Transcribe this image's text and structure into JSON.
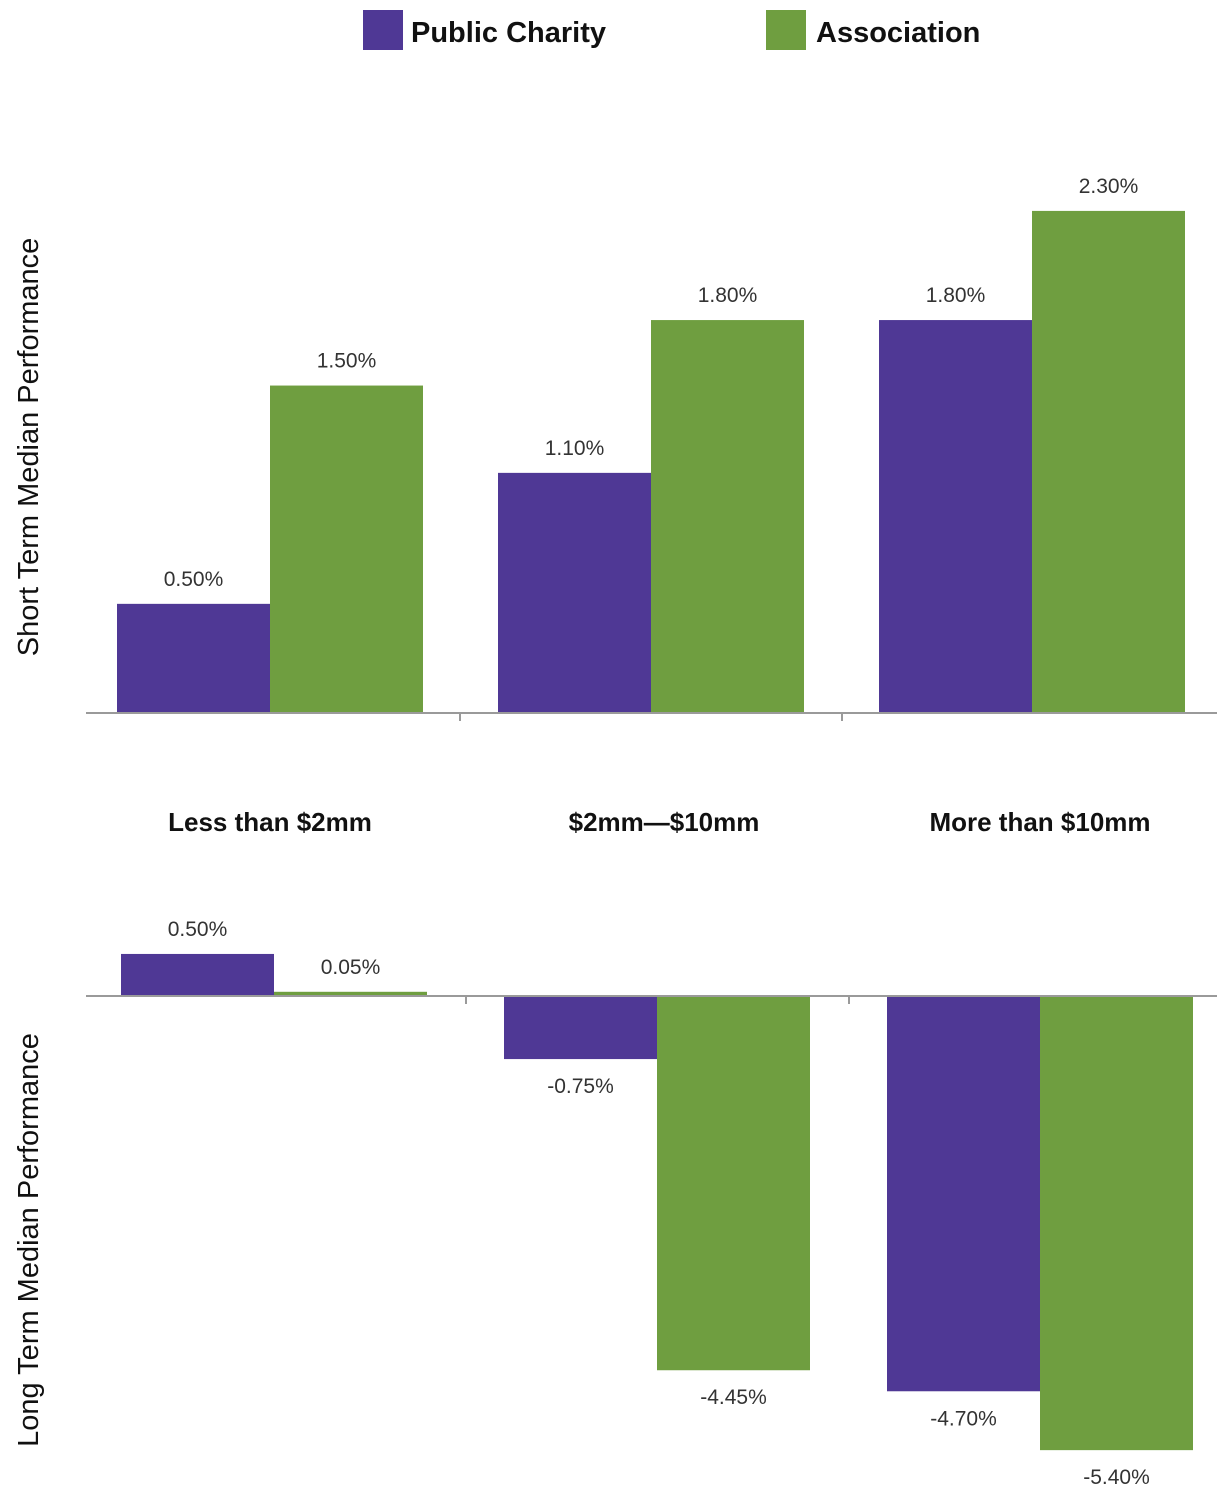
{
  "colors": {
    "public_charity": "#4f3895",
    "association": "#6f9e40"
  },
  "legend": [
    {
      "label": "Public Charity",
      "color": "#4f3895"
    },
    {
      "label": "Association",
      "color": "#6f9e40"
    }
  ],
  "chart_data": [
    {
      "type": "bar",
      "ylabel": "Short Term Median Performance",
      "categories": [
        "Less than $2mm",
        "$2mm—$10mm",
        "More than $10mm"
      ],
      "series": [
        {
          "name": "Public Charity",
          "values": [
            0.5,
            1.1,
            1.8
          ],
          "labels": [
            "0.50%",
            "1.10%",
            "1.80%"
          ]
        },
        {
          "name": "Association",
          "values": [
            1.5,
            1.8,
            2.3
          ],
          "labels": [
            "1.50%",
            "1.80%",
            "2.30%"
          ]
        }
      ],
      "ylim": [
        0,
        2.3
      ]
    },
    {
      "type": "bar",
      "ylabel": "Long Term Median Performance",
      "categories": [
        "Less than $2mm",
        "$2mm—$10mm",
        "More than $10mm"
      ],
      "series": [
        {
          "name": "Public Charity",
          "values": [
            0.5,
            -0.75,
            -4.7
          ],
          "labels": [
            "0.50%",
            "-0.75%",
            "-4.70%"
          ]
        },
        {
          "name": "Association",
          "values": [
            0.05,
            -4.45,
            -5.4
          ],
          "labels": [
            "0.05%",
            "-4.45%",
            "-5.40%"
          ]
        }
      ],
      "ylim": [
        -5.4,
        0.5
      ]
    }
  ]
}
